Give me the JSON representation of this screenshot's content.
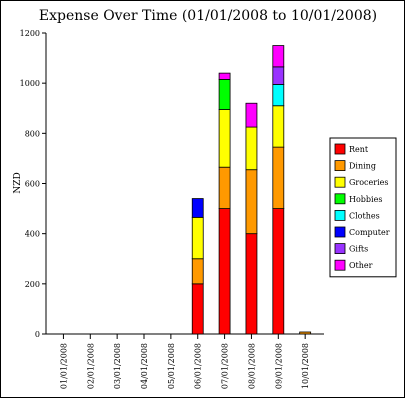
{
  "chart_data": {
    "type": "bar",
    "stacked": true,
    "title": "Expense Over Time (01/01/2008 to 10/01/2008)",
    "ylabel": "NZD",
    "xlabel": "",
    "ylim": [
      0,
      1200
    ],
    "yticks": [
      0,
      200,
      400,
      600,
      800,
      1000,
      1200
    ],
    "grid": false,
    "legend_position": "right",
    "categories": [
      "01/01/2008",
      "02/01/2008",
      "03/01/2008",
      "04/01/2008",
      "05/01/2008",
      "06/01/2008",
      "07/01/2008",
      "08/01/2008",
      "09/01/2008",
      "10/01/2008"
    ],
    "series": [
      {
        "name": "Rent",
        "color": "#ff0000",
        "values": [
          0,
          0,
          0,
          0,
          0,
          200,
          500,
          400,
          500,
          0
        ]
      },
      {
        "name": "Dining",
        "color": "#ff9900",
        "values": [
          0,
          0,
          0,
          0,
          0,
          100,
          165,
          255,
          245,
          8
        ]
      },
      {
        "name": "Groceries",
        "color": "#ffff00",
        "values": [
          0,
          0,
          0,
          0,
          0,
          165,
          230,
          170,
          165,
          0
        ]
      },
      {
        "name": "Hobbies",
        "color": "#00ff00",
        "values": [
          0,
          0,
          0,
          0,
          0,
          0,
          120,
          0,
          0,
          0
        ]
      },
      {
        "name": "Clothes",
        "color": "#00ffff",
        "values": [
          0,
          0,
          0,
          0,
          0,
          0,
          0,
          0,
          85,
          0
        ]
      },
      {
        "name": "Computer",
        "color": "#0000ff",
        "values": [
          0,
          0,
          0,
          0,
          0,
          75,
          0,
          0,
          0,
          0
        ]
      },
      {
        "name": "Gifts",
        "color": "#9933ff",
        "values": [
          0,
          0,
          0,
          0,
          0,
          0,
          0,
          0,
          70,
          0
        ]
      },
      {
        "name": "Other",
        "color": "#ff00ff",
        "values": [
          0,
          0,
          0,
          0,
          0,
          0,
          25,
          95,
          85,
          0
        ]
      }
    ]
  }
}
